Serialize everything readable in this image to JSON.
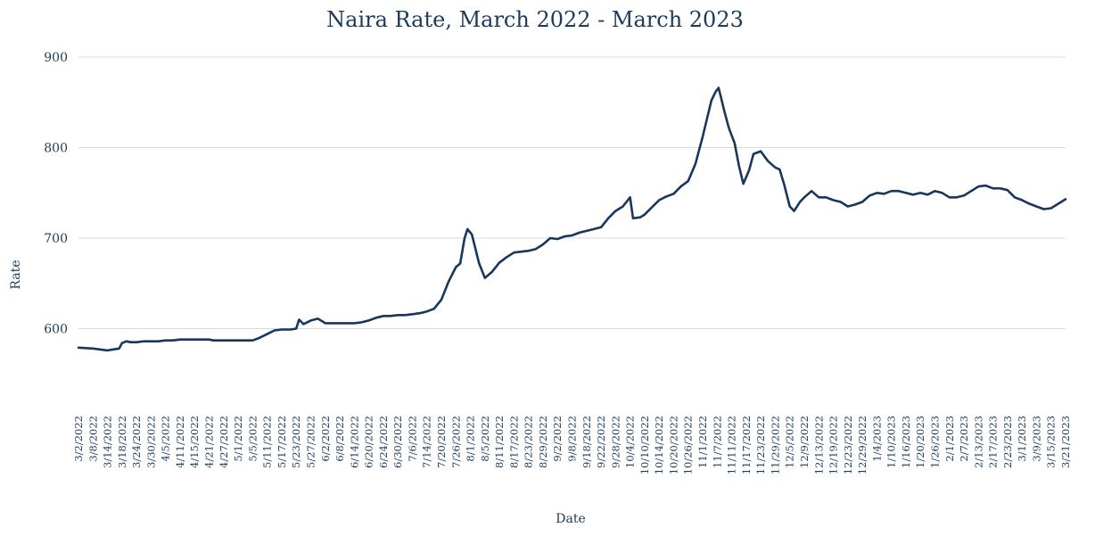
{
  "chart_data": {
    "type": "line",
    "title": "Naira Rate, March 2022 - March 2023",
    "xlabel": "Date",
    "ylabel": "Rate",
    "ylim": [
      500,
      900
    ],
    "yticks": [
      600,
      700,
      800,
      900
    ],
    "grid": true,
    "legend": "none",
    "colors": {
      "line": "#17375e",
      "text": "#1b3a5c",
      "grid": "#d9d9d9"
    },
    "xtick_labels": [
      "3/2/2022",
      "3/8/2022",
      "3/14/2022",
      "3/18/2022",
      "3/24/2022",
      "3/30/2022",
      "4/5/2022",
      "4/11/2022",
      "4/15/2022",
      "4/21/2022",
      "4/27/2022",
      "5/1/2022",
      "5/5/2022",
      "5/11/2022",
      "5/17/2022",
      "5/23/2022",
      "5/27/2022",
      "6/2/2022",
      "6/8/2022",
      "6/14/2022",
      "6/20/2022",
      "6/24/2022",
      "6/30/2022",
      "7/6/2022",
      "7/14/2022",
      "7/20/2022",
      "7/26/2022",
      "8/1/2022",
      "8/5/2022",
      "8/11/2022",
      "8/17/2022",
      "8/23/2022",
      "8/29/2022",
      "9/2/2022",
      "9/8/2022",
      "9/18/2022",
      "9/22/2022",
      "9/28/2022",
      "10/4/2022",
      "10/10/2022",
      "10/14/2022",
      "10/20/2022",
      "10/26/2022",
      "11/1/2022",
      "11/7/2022",
      "11/11/2022",
      "11/17/2022",
      "11/23/2022",
      "11/29/2022",
      "12/5/2022",
      "12/9/2022",
      "12/13/2022",
      "12/19/2022",
      "12/23/2022",
      "12/29/2022",
      "1/4/2023",
      "1/10/2023",
      "1/16/2023",
      "1/20/2023",
      "1/26/2023",
      "2/1/2023",
      "2/7/2023",
      "2/13/2023",
      "2/17/2023",
      "2/23/2023",
      "3/1/2023",
      "3/9/2023",
      "3/15/2023",
      "3/21/2023"
    ],
    "series": [
      {
        "name": "",
        "values": [
          [
            0,
            579
          ],
          [
            1,
            578
          ],
          [
            2,
            576
          ],
          [
            2.4,
            577
          ],
          [
            2.8,
            578
          ],
          [
            3,
            584
          ],
          [
            3.3,
            586
          ],
          [
            3.6,
            585
          ],
          [
            4,
            585
          ],
          [
            4.5,
            586
          ],
          [
            5,
            586
          ],
          [
            5.5,
            586
          ],
          [
            6,
            587
          ],
          [
            6.5,
            587
          ],
          [
            7,
            588
          ],
          [
            7.5,
            588
          ],
          [
            8,
            588
          ],
          [
            8.5,
            588
          ],
          [
            9,
            588
          ],
          [
            9.3,
            587
          ],
          [
            10,
            587
          ],
          [
            11,
            587
          ],
          [
            12,
            587
          ],
          [
            12.5,
            590
          ],
          [
            13,
            594
          ],
          [
            13.5,
            598
          ],
          [
            14,
            599
          ],
          [
            14.6,
            599
          ],
          [
            15,
            600
          ],
          [
            15.2,
            610
          ],
          [
            15.5,
            605
          ],
          [
            16,
            609
          ],
          [
            16.5,
            611
          ],
          [
            17,
            606
          ],
          [
            17.5,
            606
          ],
          [
            18,
            606
          ],
          [
            18.5,
            606
          ],
          [
            19,
            606
          ],
          [
            19.5,
            607
          ],
          [
            20,
            609
          ],
          [
            20.5,
            612
          ],
          [
            21,
            614
          ],
          [
            21.5,
            614
          ],
          [
            22,
            615
          ],
          [
            22.5,
            615
          ],
          [
            23,
            616
          ],
          [
            23.5,
            617
          ],
          [
            24,
            619
          ],
          [
            24.5,
            622
          ],
          [
            25,
            632
          ],
          [
            25.5,
            652
          ],
          [
            26,
            668
          ],
          [
            26.3,
            672
          ],
          [
            26.6,
            700
          ],
          [
            26.8,
            710
          ],
          [
            27.1,
            704
          ],
          [
            27.6,
            672
          ],
          [
            28,
            656
          ],
          [
            28.5,
            663
          ],
          [
            29,
            673
          ],
          [
            29.5,
            679
          ],
          [
            30,
            684
          ],
          [
            30.5,
            685
          ],
          [
            31,
            686
          ],
          [
            31.5,
            688
          ],
          [
            32,
            693
          ],
          [
            32.5,
            700
          ],
          [
            33,
            699
          ],
          [
            33.5,
            702
          ],
          [
            34,
            703
          ],
          [
            34.5,
            706
          ],
          [
            35,
            708
          ],
          [
            35.5,
            710
          ],
          [
            36,
            712
          ],
          [
            36.5,
            722
          ],
          [
            37,
            730
          ],
          [
            37.5,
            735
          ],
          [
            38,
            745
          ],
          [
            38.2,
            722
          ],
          [
            38.7,
            723
          ],
          [
            39,
            726
          ],
          [
            39.5,
            734
          ],
          [
            40,
            742
          ],
          [
            40.5,
            746
          ],
          [
            41,
            749
          ],
          [
            41.5,
            757
          ],
          [
            42,
            763
          ],
          [
            42.5,
            782
          ],
          [
            43,
            812
          ],
          [
            43.3,
            832
          ],
          [
            43.6,
            852
          ],
          [
            43.9,
            862
          ],
          [
            44.1,
            866
          ],
          [
            44.5,
            840
          ],
          [
            44.8,
            822
          ],
          [
            45.2,
            805
          ],
          [
            45.5,
            780
          ],
          [
            45.8,
            760
          ],
          [
            46.2,
            775
          ],
          [
            46.5,
            793
          ],
          [
            47,
            796
          ],
          [
            47.5,
            785
          ],
          [
            48,
            778
          ],
          [
            48.3,
            776
          ],
          [
            48.6,
            760
          ],
          [
            49,
            735
          ],
          [
            49.3,
            730
          ],
          [
            49.7,
            740
          ],
          [
            50,
            745
          ],
          [
            50.5,
            752
          ],
          [
            51,
            745
          ],
          [
            51.5,
            745
          ],
          [
            52,
            742
          ],
          [
            52.5,
            740
          ],
          [
            53,
            735
          ],
          [
            53.5,
            737
          ],
          [
            54,
            740
          ],
          [
            54.5,
            747
          ],
          [
            55,
            750
          ],
          [
            55.5,
            749
          ],
          [
            56,
            752
          ],
          [
            56.5,
            752
          ],
          [
            57,
            750
          ],
          [
            57.5,
            748
          ],
          [
            58,
            750
          ],
          [
            58.5,
            748
          ],
          [
            59,
            752
          ],
          [
            59.5,
            750
          ],
          [
            60,
            745
          ],
          [
            60.5,
            745
          ],
          [
            61,
            747
          ],
          [
            61.5,
            752
          ],
          [
            62,
            757
          ],
          [
            62.5,
            758
          ],
          [
            63,
            755
          ],
          [
            63.5,
            755
          ],
          [
            64,
            753
          ],
          [
            64.5,
            745
          ],
          [
            65,
            742
          ],
          [
            65.5,
            738
          ],
          [
            66,
            735
          ],
          [
            66.5,
            732
          ],
          [
            67,
            733
          ],
          [
            67.5,
            738
          ],
          [
            68,
            743
          ]
        ]
      }
    ]
  }
}
